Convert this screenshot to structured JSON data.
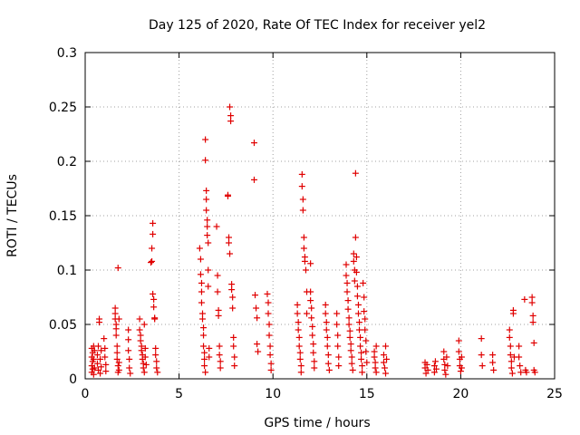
{
  "chart_data": {
    "type": "scatter",
    "title": "Day 125 of 2020, Rate Of TEC Index for receiver yel2",
    "xlabel": "GPS time / hours",
    "ylabel": "ROTI / TECUs",
    "xlim": [
      0,
      25
    ],
    "ylim": [
      0,
      0.3
    ],
    "grid": true,
    "color": "#e00000",
    "marker": "plus",
    "x_ticks": [
      0,
      5,
      10,
      15,
      20,
      25
    ],
    "x_tick_labels": [
      "0",
      "5",
      "10",
      "15",
      "20",
      "25"
    ],
    "y_ticks": [
      0,
      0.05,
      0.1,
      0.15,
      0.2,
      0.25,
      0.3
    ],
    "y_tick_labels": [
      "0",
      "0.05",
      "0.1",
      "0.15",
      "0.2",
      "0.25",
      "0.3"
    ],
    "series": [
      {
        "name": "yel2",
        "points": [
          [
            0.35,
            0.028
          ],
          [
            0.35,
            0.02
          ],
          [
            0.35,
            0.012
          ],
          [
            0.35,
            0.006
          ],
          [
            0.4,
            0.024
          ],
          [
            0.4,
            0.016
          ],
          [
            0.4,
            0.009
          ],
          [
            0.45,
            0.03
          ],
          [
            0.45,
            0.018
          ],
          [
            0.45,
            0.004
          ],
          [
            0.5,
            0.026
          ],
          [
            0.5,
            0.01
          ],
          [
            0.65,
            0.022
          ],
          [
            0.65,
            0.014
          ],
          [
            0.7,
            0.008
          ],
          [
            0.7,
            0.03
          ],
          [
            0.75,
            0.052
          ],
          [
            0.75,
            0.055
          ],
          [
            0.8,
            0.018
          ],
          [
            0.8,
            0.005
          ],
          [
            0.85,
            0.026
          ],
          [
            0.85,
            0.011
          ],
          [
            1.0,
            0.037
          ],
          [
            1.05,
            0.028
          ],
          [
            1.05,
            0.02
          ],
          [
            1.1,
            0.013
          ],
          [
            1.1,
            0.007
          ],
          [
            1.6,
            0.065
          ],
          [
            1.6,
            0.06
          ],
          [
            1.6,
            0.055
          ],
          [
            1.65,
            0.05
          ],
          [
            1.65,
            0.046
          ],
          [
            1.65,
            0.04
          ],
          [
            1.7,
            0.03
          ],
          [
            1.7,
            0.024
          ],
          [
            1.7,
            0.018
          ],
          [
            1.75,
            0.012
          ],
          [
            1.75,
            0.006
          ],
          [
            1.75,
            0.102
          ],
          [
            1.8,
            0.055
          ],
          [
            1.8,
            0.015
          ],
          [
            1.8,
            0.008
          ],
          [
            2.3,
            0.045
          ],
          [
            2.3,
            0.036
          ],
          [
            2.3,
            0.026
          ],
          [
            2.35,
            0.018
          ],
          [
            2.35,
            0.01
          ],
          [
            2.4,
            0.005
          ],
          [
            2.9,
            0.055
          ],
          [
            2.9,
            0.045
          ],
          [
            2.95,
            0.04
          ],
          [
            2.95,
            0.035
          ],
          [
            3.0,
            0.03
          ],
          [
            3.0,
            0.026
          ],
          [
            3.05,
            0.022
          ],
          [
            3.05,
            0.018
          ],
          [
            3.1,
            0.014
          ],
          [
            3.1,
            0.01
          ],
          [
            3.15,
            0.006
          ],
          [
            3.15,
            0.05
          ],
          [
            3.2,
            0.028
          ],
          [
            3.2,
            0.02
          ],
          [
            3.25,
            0.013
          ],
          [
            3.5,
            0.107
          ],
          [
            3.55,
            0.108
          ],
          [
            3.55,
            0.12
          ],
          [
            3.6,
            0.133
          ],
          [
            3.6,
            0.143
          ],
          [
            3.6,
            0.078
          ],
          [
            3.65,
            0.073
          ],
          [
            3.65,
            0.066
          ],
          [
            3.7,
            0.056
          ],
          [
            3.7,
            0.055
          ],
          [
            3.75,
            0.028
          ],
          [
            3.75,
            0.022
          ],
          [
            3.8,
            0.016
          ],
          [
            3.8,
            0.01
          ],
          [
            3.85,
            0.006
          ],
          [
            6.1,
            0.12
          ],
          [
            6.15,
            0.11
          ],
          [
            6.15,
            0.096
          ],
          [
            6.2,
            0.088
          ],
          [
            6.2,
            0.08
          ],
          [
            6.2,
            0.07
          ],
          [
            6.25,
            0.06
          ],
          [
            6.25,
            0.055
          ],
          [
            6.3,
            0.047
          ],
          [
            6.3,
            0.04
          ],
          [
            6.3,
            0.03
          ],
          [
            6.35,
            0.024
          ],
          [
            6.35,
            0.018
          ],
          [
            6.35,
            0.012
          ],
          [
            6.4,
            0.006
          ],
          [
            6.4,
            0.22
          ],
          [
            6.4,
            0.201
          ],
          [
            6.45,
            0.173
          ],
          [
            6.45,
            0.165
          ],
          [
            6.45,
            0.155
          ],
          [
            6.5,
            0.146
          ],
          [
            6.5,
            0.14
          ],
          [
            6.5,
            0.132
          ],
          [
            6.55,
            0.125
          ],
          [
            6.55,
            0.1
          ],
          [
            6.55,
            0.085
          ],
          [
            6.6,
            0.028
          ],
          [
            6.6,
            0.02
          ],
          [
            7.0,
            0.14
          ],
          [
            7.05,
            0.095
          ],
          [
            7.05,
            0.08
          ],
          [
            7.1,
            0.063
          ],
          [
            7.1,
            0.058
          ],
          [
            7.15,
            0.03
          ],
          [
            7.15,
            0.022
          ],
          [
            7.2,
            0.016
          ],
          [
            7.2,
            0.01
          ],
          [
            7.6,
            0.169
          ],
          [
            7.6,
            0.168
          ],
          [
            7.65,
            0.13
          ],
          [
            7.65,
            0.125
          ],
          [
            7.7,
            0.115
          ],
          [
            7.7,
            0.25
          ],
          [
            7.75,
            0.242
          ],
          [
            7.75,
            0.237
          ],
          [
            7.8,
            0.087
          ],
          [
            7.8,
            0.082
          ],
          [
            7.85,
            0.075
          ],
          [
            7.85,
            0.065
          ],
          [
            7.9,
            0.038
          ],
          [
            7.9,
            0.03
          ],
          [
            7.95,
            0.02
          ],
          [
            7.95,
            0.012
          ],
          [
            9.0,
            0.217
          ],
          [
            9.0,
            0.183
          ],
          [
            9.05,
            0.077
          ],
          [
            9.1,
            0.065
          ],
          [
            9.15,
            0.056
          ],
          [
            9.15,
            0.032
          ],
          [
            9.2,
            0.025
          ],
          [
            9.7,
            0.078
          ],
          [
            9.75,
            0.07
          ],
          [
            9.75,
            0.06
          ],
          [
            9.8,
            0.05
          ],
          [
            9.8,
            0.04
          ],
          [
            9.85,
            0.03
          ],
          [
            9.85,
            0.022
          ],
          [
            9.9,
            0.014
          ],
          [
            9.9,
            0.008
          ],
          [
            11.3,
            0.068
          ],
          [
            11.3,
            0.06
          ],
          [
            11.35,
            0.052
          ],
          [
            11.35,
            0.045
          ],
          [
            11.4,
            0.038
          ],
          [
            11.4,
            0.03
          ],
          [
            11.45,
            0.024
          ],
          [
            11.45,
            0.018
          ],
          [
            11.5,
            0.012
          ],
          [
            11.5,
            0.006
          ],
          [
            11.55,
            0.188
          ],
          [
            11.55,
            0.177
          ],
          [
            11.6,
            0.165
          ],
          [
            11.6,
            0.155
          ],
          [
            11.65,
            0.13
          ],
          [
            11.65,
            0.12
          ],
          [
            11.7,
            0.112
          ],
          [
            11.7,
            0.108
          ],
          [
            11.75,
            0.1
          ],
          [
            11.8,
            0.08
          ],
          [
            11.8,
            0.06
          ],
          [
            12.0,
            0.08
          ],
          [
            12.0,
            0.072
          ],
          [
            12.05,
            0.065
          ],
          [
            12.05,
            0.056
          ],
          [
            12.1,
            0.048
          ],
          [
            12.1,
            0.04
          ],
          [
            12.15,
            0.032
          ],
          [
            12.15,
            0.024
          ],
          [
            12.2,
            0.016
          ],
          [
            12.2,
            0.01
          ],
          [
            12.0,
            0.106
          ],
          [
            12.8,
            0.068
          ],
          [
            12.8,
            0.06
          ],
          [
            12.85,
            0.052
          ],
          [
            12.85,
            0.045
          ],
          [
            12.9,
            0.038
          ],
          [
            12.9,
            0.03
          ],
          [
            12.95,
            0.022
          ],
          [
            12.95,
            0.014
          ],
          [
            13.0,
            0.008
          ],
          [
            13.4,
            0.06
          ],
          [
            13.4,
            0.05
          ],
          [
            13.45,
            0.04
          ],
          [
            13.45,
            0.03
          ],
          [
            13.5,
            0.02
          ],
          [
            13.5,
            0.012
          ],
          [
            13.9,
            0.105
          ],
          [
            13.9,
            0.095
          ],
          [
            13.95,
            0.088
          ],
          [
            13.95,
            0.08
          ],
          [
            14.0,
            0.072
          ],
          [
            14.0,
            0.064
          ],
          [
            14.05,
            0.056
          ],
          [
            14.05,
            0.05
          ],
          [
            14.1,
            0.044
          ],
          [
            14.1,
            0.038
          ],
          [
            14.15,
            0.032
          ],
          [
            14.15,
            0.026
          ],
          [
            14.2,
            0.02
          ],
          [
            14.2,
            0.014
          ],
          [
            14.25,
            0.008
          ],
          [
            14.3,
            0.115
          ],
          [
            14.3,
            0.108
          ],
          [
            14.35,
            0.1
          ],
          [
            14.35,
            0.09
          ],
          [
            14.4,
            0.189
          ],
          [
            14.4,
            0.13
          ],
          [
            14.45,
            0.112
          ],
          [
            14.45,
            0.098
          ],
          [
            14.5,
            0.085
          ],
          [
            14.5,
            0.076
          ],
          [
            14.55,
            0.068
          ],
          [
            14.55,
            0.06
          ],
          [
            14.6,
            0.052
          ],
          [
            14.6,
            0.045
          ],
          [
            14.65,
            0.038
          ],
          [
            14.65,
            0.03
          ],
          [
            14.7,
            0.024
          ],
          [
            14.7,
            0.018
          ],
          [
            14.75,
            0.012
          ],
          [
            14.75,
            0.006
          ],
          [
            14.8,
            0.088
          ],
          [
            14.85,
            0.075
          ],
          [
            14.85,
            0.062
          ],
          [
            14.9,
            0.055
          ],
          [
            14.9,
            0.045
          ],
          [
            14.95,
            0.035
          ],
          [
            14.95,
            0.025
          ],
          [
            15.0,
            0.015
          ],
          [
            15.4,
            0.025
          ],
          [
            15.4,
            0.02
          ],
          [
            15.45,
            0.015
          ],
          [
            15.45,
            0.01
          ],
          [
            15.5,
            0.006
          ],
          [
            15.5,
            0.03
          ],
          [
            15.9,
            0.022
          ],
          [
            15.9,
            0.015
          ],
          [
            15.95,
            0.01
          ],
          [
            16.0,
            0.005
          ],
          [
            16.0,
            0.03
          ],
          [
            16.05,
            0.018
          ],
          [
            18.1,
            0.015
          ],
          [
            18.1,
            0.01
          ],
          [
            18.15,
            0.005
          ],
          [
            18.2,
            0.013
          ],
          [
            18.25,
            0.008
          ],
          [
            18.6,
            0.012
          ],
          [
            18.6,
            0.006
          ],
          [
            18.65,
            0.016
          ],
          [
            18.7,
            0.009
          ],
          [
            19.1,
            0.025
          ],
          [
            19.1,
            0.018
          ],
          [
            19.15,
            0.013
          ],
          [
            19.15,
            0.008
          ],
          [
            19.2,
            0.004
          ],
          [
            19.25,
            0.02
          ],
          [
            19.3,
            0.012
          ],
          [
            19.9,
            0.035
          ],
          [
            19.9,
            0.025
          ],
          [
            19.95,
            0.018
          ],
          [
            19.95,
            0.012
          ],
          [
            20.0,
            0.007
          ],
          [
            20.05,
            0.02
          ],
          [
            20.05,
            0.01
          ],
          [
            21.1,
            0.037
          ],
          [
            21.1,
            0.022
          ],
          [
            21.15,
            0.012
          ],
          [
            21.7,
            0.022
          ],
          [
            21.7,
            0.015
          ],
          [
            21.75,
            0.008
          ],
          [
            22.6,
            0.045
          ],
          [
            22.6,
            0.038
          ],
          [
            22.65,
            0.03
          ],
          [
            22.65,
            0.022
          ],
          [
            22.7,
            0.016
          ],
          [
            22.7,
            0.01
          ],
          [
            22.75,
            0.005
          ],
          [
            22.8,
            0.063
          ],
          [
            22.8,
            0.06
          ],
          [
            22.85,
            0.02
          ],
          [
            23.1,
            0.03
          ],
          [
            23.1,
            0.02
          ],
          [
            23.15,
            0.012
          ],
          [
            23.2,
            0.006
          ],
          [
            23.4,
            0.073
          ],
          [
            23.45,
            0.008
          ],
          [
            23.5,
            0.006
          ],
          [
            23.8,
            0.075
          ],
          [
            23.8,
            0.07
          ],
          [
            23.85,
            0.058
          ],
          [
            23.85,
            0.052
          ],
          [
            23.9,
            0.033
          ],
          [
            23.9,
            0.008
          ],
          [
            23.95,
            0.006
          ]
        ]
      }
    ]
  }
}
